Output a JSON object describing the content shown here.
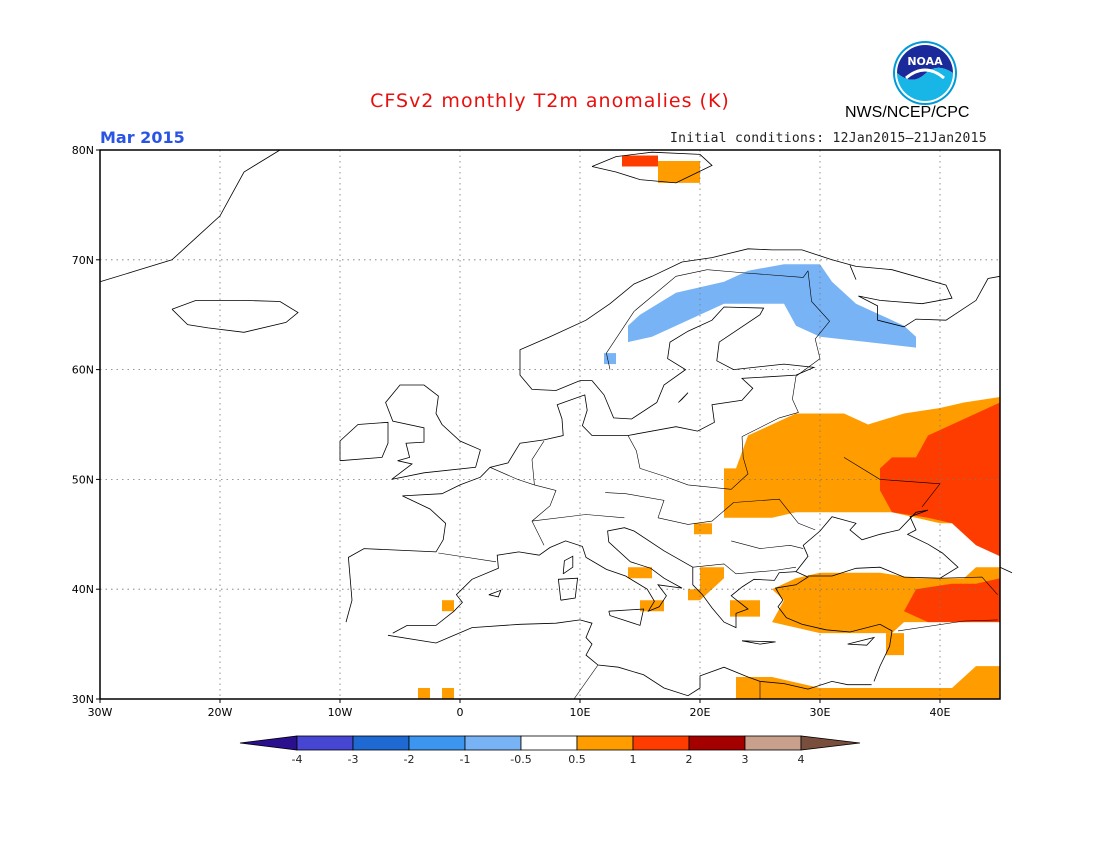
{
  "header": {
    "title": "CFSv2 monthly T2m anomalies (K)",
    "period": "Mar 2015",
    "initial_conditions": "Initial conditions: 12Jan2015–21Jan2015",
    "agency": "NWS/NCEP/CPC",
    "logo_text": "NOAA"
  },
  "map": {
    "lon_range": [
      -30,
      45
    ],
    "lat_range": [
      30,
      80
    ],
    "lon_labels": [
      "30W",
      "20W",
      "10W",
      "0",
      "10E",
      "20E",
      "30E",
      "40E"
    ],
    "lat_labels": [
      "30N",
      "40N",
      "50N",
      "60N",
      "70N",
      "80N"
    ]
  },
  "colorbar": {
    "tick_labels": [
      "-4",
      "-3",
      "-2",
      "-1",
      "-0.5",
      "0.5",
      "1",
      "2",
      "3",
      "4"
    ],
    "colors": {
      "lt_neg4": "#2a0f8f",
      "neg4_neg3": "#4646d2",
      "neg3_neg2": "#1e6ad2",
      "neg2_neg1": "#3c96f0",
      "neg1_neg05": "#78b4f5",
      "neg05_05": "#ffffff",
      "p05_1": "#ff9c00",
      "p1_2": "#ff3c00",
      "p2_3": "#a50000",
      "p3_4": "#c8a08c",
      "gt4": "#7a4e3c"
    }
  },
  "anomaly_regions": [
    {
      "level": "neg1_neg05",
      "lon": [
        14,
        38
      ],
      "lat": [
        62,
        70
      ],
      "shape": "scandinavia-cold"
    },
    {
      "level": "p05_1",
      "lon": [
        22,
        45
      ],
      "lat": [
        46,
        56
      ],
      "shape": "east-europe-warm"
    },
    {
      "level": "p1_2",
      "lon": [
        36,
        45
      ],
      "lat": [
        44,
        57
      ],
      "shape": "russia-hot"
    },
    {
      "level": "p05_1",
      "lon": [
        26,
        45
      ],
      "lat": [
        36,
        41
      ],
      "shape": "anatolia-warm"
    },
    {
      "level": "p1_2",
      "lon": [
        37,
        45
      ],
      "lat": [
        37,
        41
      ],
      "shape": "east-anatolia-hot"
    },
    {
      "level": "p1_2",
      "lon": [
        13,
        17
      ],
      "lat": [
        78,
        79
      ],
      "shape": "svalbard-hot"
    },
    {
      "level": "p05_1",
      "lon": [
        16,
        20
      ],
      "lat": [
        77,
        79
      ],
      "shape": "svalbard-warm"
    }
  ]
}
